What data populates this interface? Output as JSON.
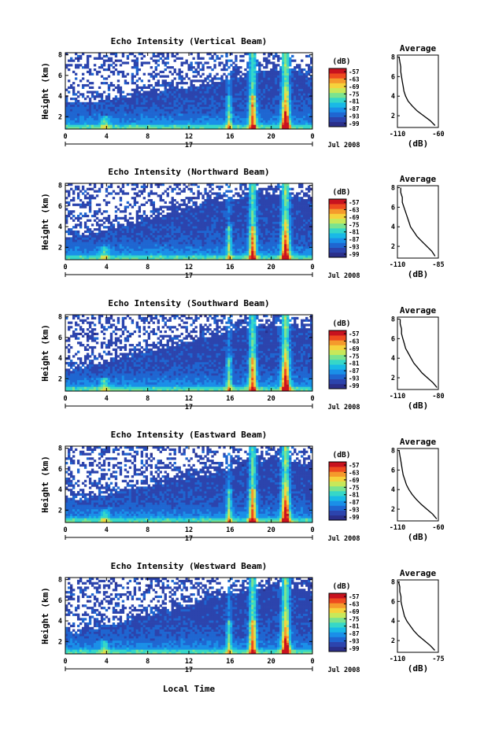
{
  "colors": {
    "colormap": [
      "#2b2f8a",
      "#2c44ad",
      "#1f66d1",
      "#1a8fe8",
      "#19b9e6",
      "#36d7c8",
      "#7be38f",
      "#c8e85a",
      "#f6d23c",
      "#f59a2c",
      "#ee4a1f",
      "#c8121e"
    ],
    "background": "#ffffff",
    "line": "#000000"
  },
  "shared": {
    "xlabel": "Local Time",
    "date_label": "Jul 2008",
    "day_label": "17",
    "x_ticks": [
      "0",
      "4",
      "8",
      "12",
      "16",
      "20",
      "0"
    ],
    "y_label": "Height (km)",
    "y_ticks": [
      "2",
      "4",
      "6",
      "8"
    ],
    "colorbar_unit": "(dB)",
    "colorbar_ticks": [
      "-57",
      "-63",
      "-69",
      "-75",
      "-81",
      "-87",
      "-93",
      "-99"
    ],
    "avg_title": "Average",
    "avg_xlabel": "(dB)",
    "avg_y_ticks": [
      "2",
      "4",
      "6",
      "8"
    ]
  },
  "chart_data": [
    {
      "type": "heatmap",
      "title": "Echo Intensity (Vertical Beam)",
      "beam": "vertical",
      "x_hours": [
        0,
        4,
        8,
        12,
        16,
        20,
        24
      ],
      "xlim": [
        0,
        24
      ],
      "ylim": [
        0.8,
        8.2
      ],
      "clim": [
        -99,
        -57
      ],
      "top_height_km": [
        3.9,
        4.1,
        4.4,
        4.7,
        5.0,
        5.3,
        5.6,
        6.0,
        6.4,
        6.9,
        7.4,
        7.2,
        6.5
      ],
      "average_profile": {
        "xlim": [
          -110,
          -60
        ],
        "x_ticks": [
          "-110",
          "-60"
        ],
        "height_km": [
          8.0,
          7.5,
          7.0,
          6.5,
          6.0,
          5.5,
          5.0,
          4.5,
          4.0,
          3.5,
          3.0,
          2.5,
          2.0,
          1.5,
          1.0
        ],
        "db": [
          -108,
          -107,
          -106,
          -106,
          -105,
          -104,
          -103,
          -102,
          -100,
          -97,
          -92,
          -86,
          -78,
          -70,
          -64
        ]
      }
    },
    {
      "type": "heatmap",
      "title": "Echo Intensity (Northward Beam)",
      "beam": "northward",
      "x_hours": [
        0,
        4,
        8,
        12,
        16,
        20,
        24
      ],
      "xlim": [
        0,
        24
      ],
      "ylim": [
        0.8,
        8.2
      ],
      "clim": [
        -99,
        -57
      ],
      "top_height_km": [
        3.6,
        4.0,
        4.5,
        5.0,
        5.5,
        6.0,
        6.5,
        7.0,
        7.4,
        7.8,
        8.0,
        7.8,
        7.4
      ],
      "average_profile": {
        "xlim": [
          -110,
          -85
        ],
        "x_ticks": [
          "-110",
          "-85"
        ],
        "height_km": [
          8.0,
          7.5,
          7.0,
          6.5,
          6.0,
          5.5,
          5.0,
          4.5,
          4.0,
          3.5,
          3.0,
          2.5,
          2.0,
          1.5,
          1.0
        ],
        "db": [
          -108,
          -108,
          -107,
          -107,
          -106,
          -105,
          -104,
          -103,
          -102,
          -100,
          -98,
          -95,
          -92,
          -89,
          -87
        ]
      }
    },
    {
      "type": "heatmap",
      "title": "Echo Intensity (Southward Beam)",
      "beam": "southward",
      "x_hours": [
        0,
        4,
        8,
        12,
        16,
        20,
        24
      ],
      "xlim": [
        0,
        24
      ],
      "ylim": [
        0.8,
        8.2
      ],
      "clim": [
        -99,
        -57
      ],
      "top_height_km": [
        3.4,
        3.9,
        4.4,
        4.9,
        5.4,
        5.9,
        6.4,
        6.9,
        7.4,
        7.8,
        8.0,
        7.9,
        7.6
      ],
      "average_profile": {
        "xlim": [
          -110,
          -80
        ],
        "x_ticks": [
          "-110",
          "-80"
        ],
        "height_km": [
          8.0,
          7.5,
          7.0,
          6.5,
          6.0,
          5.5,
          5.0,
          4.5,
          4.0,
          3.5,
          3.0,
          2.5,
          2.0,
          1.5,
          1.0
        ],
        "db": [
          -108,
          -108,
          -107,
          -107,
          -106,
          -105,
          -104,
          -102,
          -100,
          -98,
          -95,
          -92,
          -88,
          -84,
          -81
        ]
      }
    },
    {
      "type": "heatmap",
      "title": "Echo Intensity (Eastward Beam)",
      "beam": "eastward",
      "x_hours": [
        0,
        4,
        8,
        12,
        16,
        20,
        24
      ],
      "xlim": [
        0,
        24
      ],
      "ylim": [
        0.8,
        8.2
      ],
      "clim": [
        -99,
        -57
      ],
      "top_height_km": [
        3.6,
        3.9,
        4.3,
        4.7,
        5.1,
        5.5,
        5.9,
        6.3,
        6.8,
        7.3,
        7.8,
        7.6,
        7.0
      ],
      "average_profile": {
        "xlim": [
          -110,
          -60
        ],
        "x_ticks": [
          "-110",
          "-60"
        ],
        "height_km": [
          8.0,
          7.5,
          7.0,
          6.5,
          6.0,
          5.5,
          5.0,
          4.5,
          4.0,
          3.5,
          3.0,
          2.5,
          2.0,
          1.5,
          1.0
        ],
        "db": [
          -108,
          -107,
          -106,
          -105,
          -104,
          -103,
          -101,
          -99,
          -96,
          -92,
          -87,
          -81,
          -74,
          -67,
          -62
        ]
      }
    },
    {
      "type": "heatmap",
      "title": "Echo Intensity (Westward Beam)",
      "beam": "westward",
      "x_hours": [
        0,
        4,
        8,
        12,
        16,
        20,
        24
      ],
      "xlim": [
        0,
        24
      ],
      "ylim": [
        0.8,
        8.2
      ],
      "clim": [
        -99,
        -57
      ],
      "top_height_km": [
        3.4,
        3.8,
        4.3,
        4.8,
        5.3,
        5.8,
        6.3,
        6.8,
        7.3,
        7.8,
        8.1,
        8.0,
        7.6
      ],
      "average_profile": {
        "xlim": [
          -110,
          -75
        ],
        "x_ticks": [
          "-110",
          "-75"
        ],
        "height_km": [
          8.0,
          7.5,
          7.0,
          6.5,
          6.0,
          5.5,
          5.0,
          4.5,
          4.0,
          3.5,
          3.0,
          2.5,
          2.0,
          1.5,
          1.0
        ],
        "db": [
          -109,
          -108,
          -108,
          -107,
          -107,
          -106,
          -105,
          -104,
          -102,
          -99,
          -96,
          -92,
          -87,
          -82,
          -78
        ]
      }
    }
  ]
}
